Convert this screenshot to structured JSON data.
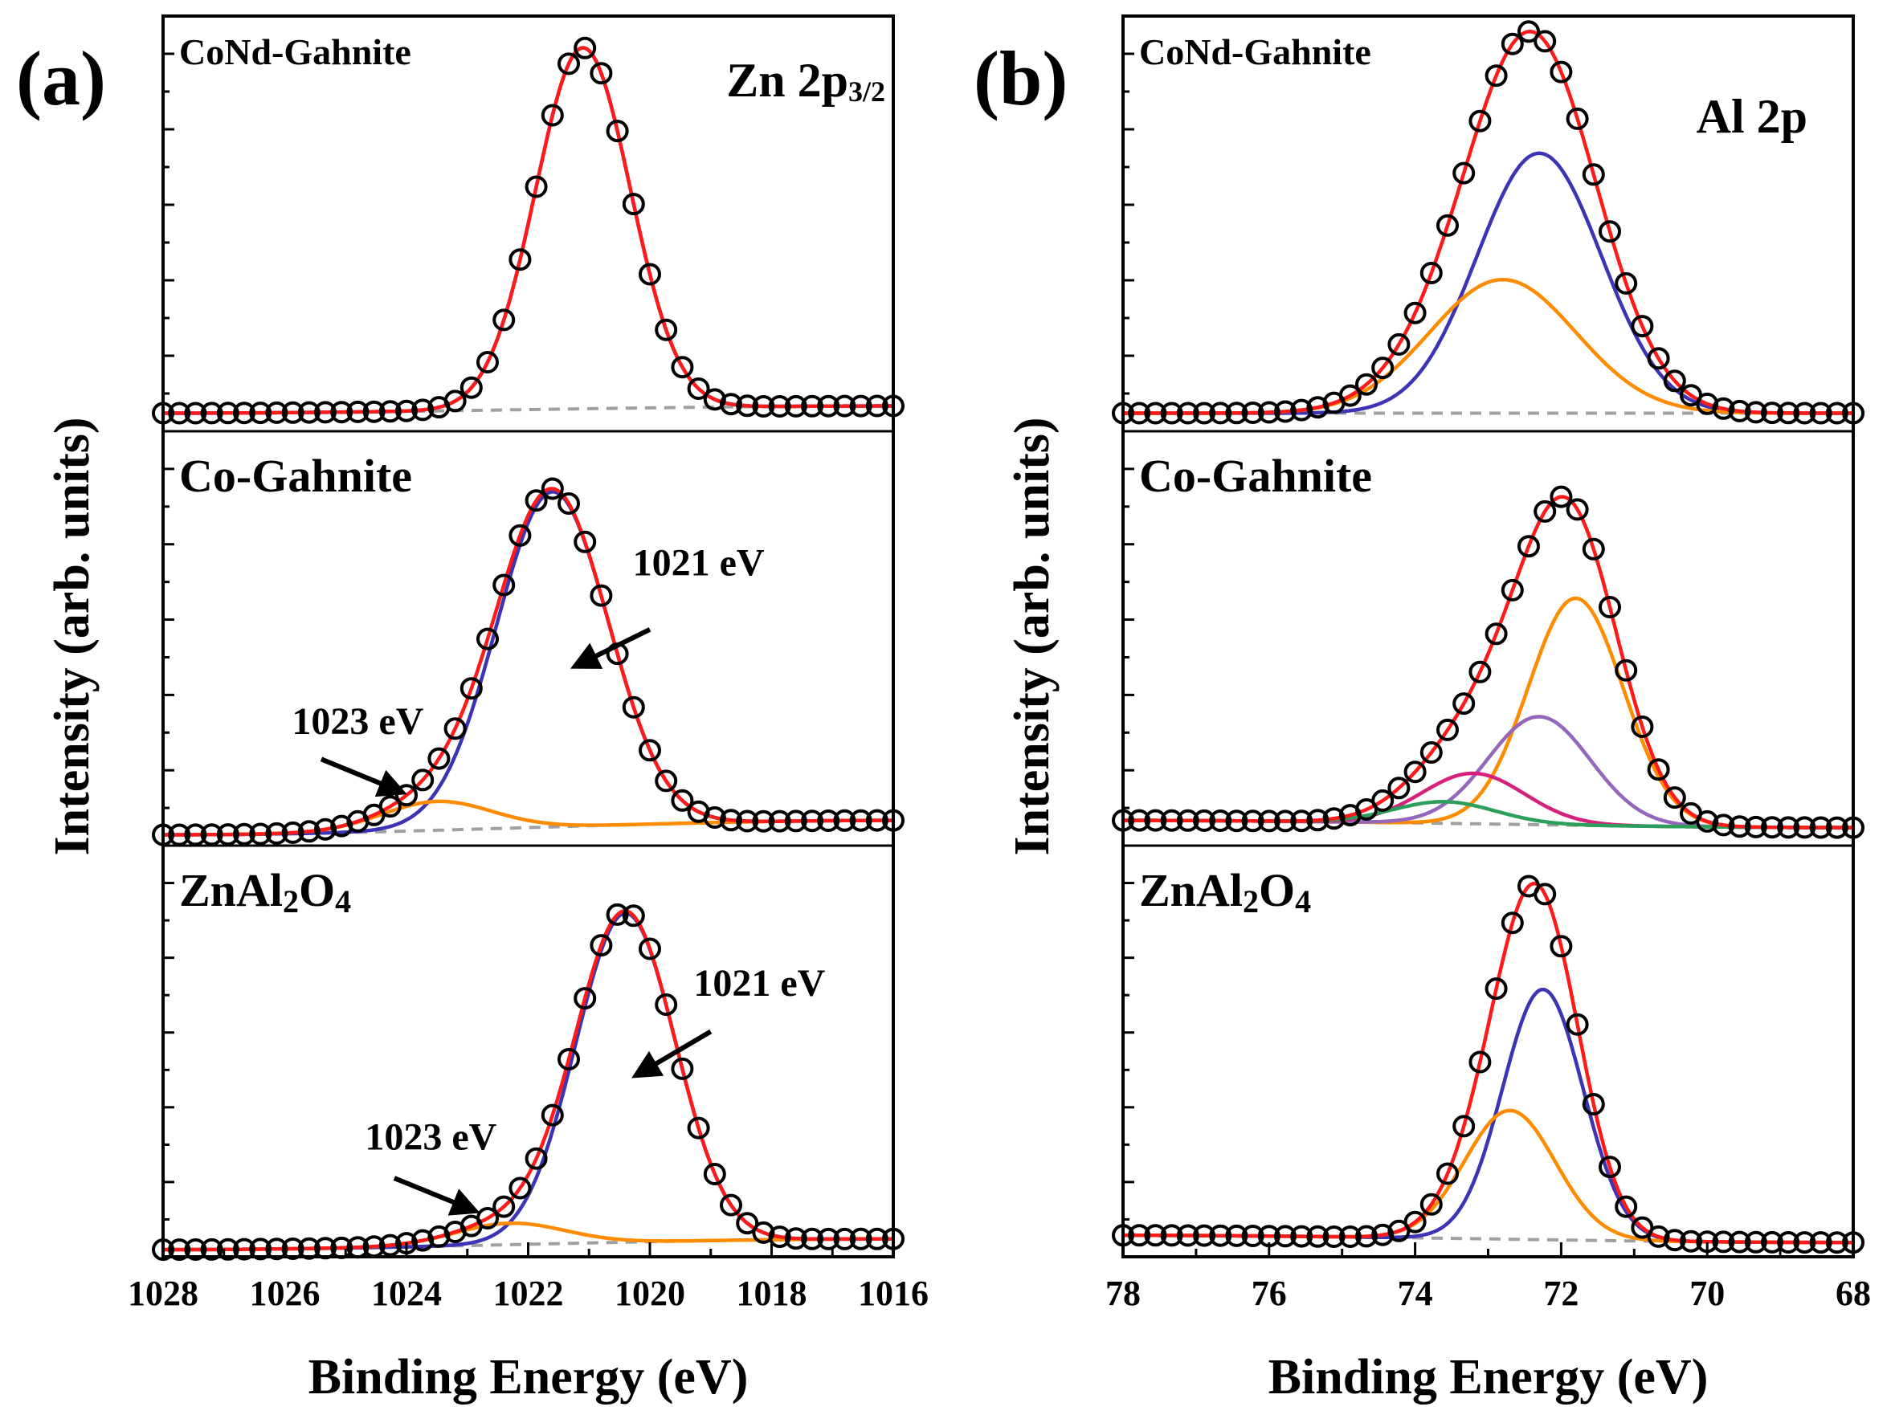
{
  "chart_data": [
    {
      "id": "a",
      "type": "line",
      "panel_label": "(a)",
      "core_level": "Zn 2p",
      "core_level_sub": "3/2",
      "xlabel": "Binding Energy (eV)",
      "ylabel": "Intensity (arb. units)",
      "xlim": [
        1028,
        1016
      ],
      "xticks": [
        1028,
        1026,
        1024,
        1022,
        1020,
        1018,
        1016
      ],
      "xtick_labels": [
        "1028",
        "1026",
        "1024",
        "1022",
        "1020",
        "1018",
        "1016"
      ],
      "ylim": [
        -0.05,
        1.1
      ],
      "subplots": [
        {
          "sample": "CoNd-Gahnite",
          "sample_html": "CoNd-Gahnite",
          "baseline": {
            "left": 0.0,
            "right": 0.02
          },
          "components": [
            {
              "name": "fit-component-1",
              "color": "#3c34b4",
              "center": 1021.1,
              "height": 1.0,
              "sigma": 0.78
            }
          ],
          "annotations": []
        },
        {
          "sample": "Co-Gahnite",
          "sample_html": "Co-Gahnite",
          "baseline": {
            "left": -0.02,
            "right": 0.02
          },
          "components": [
            {
              "name": "fit-component-1021",
              "color": "#3c34b4",
              "center": 1021.6,
              "height": 0.93,
              "sigma": 0.92
            },
            {
              "name": "fit-component-1023",
              "color": "#ff8c00",
              "center": 1023.5,
              "height": 0.08,
              "sigma": 0.9
            }
          ],
          "annotations": [
            {
              "text": "1021 eV",
              "x": 1019.2,
              "y": 0.7,
              "arrow_from": [
                1020.0,
                0.55
              ],
              "arrow_to": [
                1021.2,
                0.45
              ]
            },
            {
              "text": "1023 eV",
              "x": 1024.8,
              "y": 0.26,
              "arrow_from": [
                1025.4,
                0.19
              ],
              "arrow_to": [
                1024.1,
                0.1
              ]
            }
          ]
        },
        {
          "sample": "ZnAl2O4",
          "sample_html": "ZnAl<tspan dy='8' font-size='40'>2</tspan><tspan dy='-8'>O</tspan><tspan dy='8' font-size='40'>4</tspan>",
          "baseline": {
            "left": -0.03,
            "right": 0.0
          },
          "components": [
            {
              "name": "fit-component-1021",
              "color": "#3c34b4",
              "center": 1020.4,
              "height": 0.92,
              "sigma": 0.82
            },
            {
              "name": "fit-component-1023",
              "color": "#ff8c00",
              "center": 1022.3,
              "height": 0.06,
              "sigma": 0.9
            }
          ],
          "annotations": [
            {
              "text": "1021 eV",
              "x": 1018.2,
              "y": 0.68,
              "arrow_from": [
                1019.0,
                0.58
              ],
              "arrow_to": [
                1020.2,
                0.46
              ]
            },
            {
              "text": "1023 eV",
              "x": 1023.6,
              "y": 0.25,
              "arrow_from": [
                1024.2,
                0.17
              ],
              "arrow_to": [
                1022.9,
                0.08
              ]
            }
          ]
        }
      ]
    },
    {
      "id": "b",
      "type": "line",
      "panel_label": "(b)",
      "core_level": "Al 2p",
      "xlabel": "Binding Energy (eV)",
      "ylabel": "Intensity (arb. units)",
      "xlim": [
        78,
        68
      ],
      "xticks": [
        78,
        76,
        74,
        72,
        70,
        68
      ],
      "xtick_labels": [
        "78",
        "76",
        "74",
        "72",
        "70",
        "68"
      ],
      "ylim": [
        -0.05,
        1.1
      ],
      "subplots": [
        {
          "sample": "CoNd-Gahnite",
          "sample_html": "CoNd-Gahnite",
          "baseline": {
            "left": 0.0,
            "right": 0.0
          },
          "components": [
            {
              "name": "fit-component-1",
              "color": "#3c34b4",
              "center": 72.3,
              "height": 0.72,
              "sigma": 0.85
            },
            {
              "name": "fit-component-2",
              "color": "#ff8c00",
              "center": 72.8,
              "height": 0.37,
              "sigma": 1.0
            }
          ],
          "annotations": []
        },
        {
          "sample": "Co-Gahnite",
          "sample_html": "Co-Gahnite",
          "baseline": {
            "left": 0.02,
            "right": 0.0
          },
          "components": [
            {
              "name": "fit-component-1",
              "color": "#ff8c00",
              "center": 71.8,
              "height": 0.63,
              "sigma": 0.65
            },
            {
              "name": "fit-component-2",
              "color": "#9467bd",
              "center": 72.3,
              "height": 0.3,
              "sigma": 0.7
            },
            {
              "name": "fit-component-3",
              "color": "#d6217c",
              "center": 73.2,
              "height": 0.14,
              "sigma": 0.7
            },
            {
              "name": "fit-component-4",
              "color": "#2ca05a",
              "center": 73.6,
              "height": 0.06,
              "sigma": 0.7
            }
          ],
          "annotations": []
        },
        {
          "sample": "ZnAl2O4",
          "sample_html": "ZnAl<tspan dy='8' font-size='40'>2</tspan><tspan dy='-8'>O</tspan><tspan dy='8' font-size='40'>4</tspan>",
          "baseline": {
            "left": 0.01,
            "right": -0.01
          },
          "components": [
            {
              "name": "fit-component-1",
              "color": "#3c34b4",
              "center": 72.25,
              "height": 0.7,
              "sigma": 0.55
            },
            {
              "name": "fit-component-2",
              "color": "#ff8c00",
              "center": 72.7,
              "height": 0.36,
              "sigma": 0.62
            }
          ],
          "annotations": []
        }
      ]
    }
  ],
  "colors": {
    "envelope": "#ff1a1a",
    "data_points": "#000000",
    "baseline": "#a0a0a0"
  }
}
